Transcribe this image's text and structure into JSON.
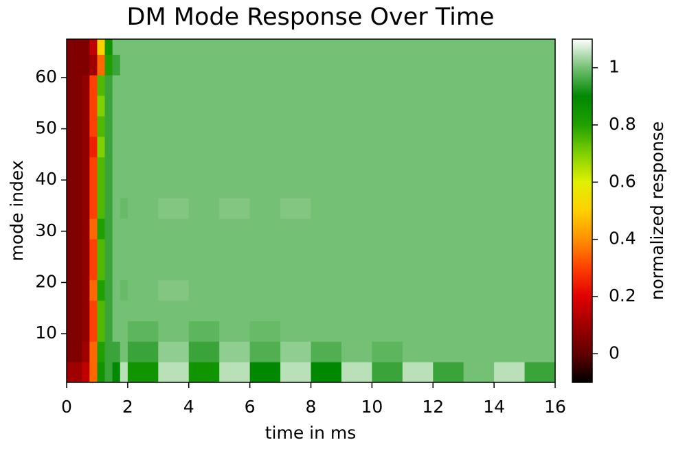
{
  "chart_data": {
    "type": "heatmap",
    "title": "DM Mode Response Over Time",
    "xlabel": "time in ms",
    "ylabel": "mode index",
    "colorbar_label": "normalized response",
    "xlim": [
      0,
      16
    ],
    "ylim": [
      0.5,
      67.5
    ],
    "xticks": [
      0,
      2,
      4,
      6,
      8,
      10,
      12,
      14,
      16
    ],
    "yticks": [
      10,
      20,
      30,
      40,
      50,
      60
    ],
    "clim": [
      -0.1,
      1.1
    ],
    "cticks": [
      0,
      0.2,
      0.4,
      0.6,
      0.8,
      1
    ],
    "colormap": [
      "#000000",
      "#600000",
      "#a00000",
      "#e00000",
      "#ff4000",
      "#ff9000",
      "#ffd000",
      "#e0f000",
      "#80d000",
      "#20a000",
      "#008800",
      "#74c074",
      "#ffffff"
    ],
    "x_edges": [
      0,
      0.25,
      0.5,
      0.75,
      1,
      1.25,
      1.5,
      1.75,
      2,
      3,
      4,
      5,
      6,
      7,
      8,
      9,
      10,
      11,
      12,
      13,
      14,
      15,
      16
    ],
    "y_edges": [
      0.5,
      4.5,
      8.5,
      12.5,
      16.5,
      20.5,
      24.5,
      28.5,
      32.5,
      36.5,
      40.5,
      44.5,
      48.5,
      52.5,
      56.5,
      60.5,
      64.5,
      67.5
    ],
    "z": [
      [
        0.1,
        0.1,
        0.15,
        0.35,
        0.85,
        0.95,
        0.9,
        1.05,
        0.85,
        1.05,
        0.85,
        1.05,
        0.9,
        1.05,
        0.9,
        1.05,
        0.95,
        1.05,
        0.95,
        1.0,
        1.05,
        0.95
      ],
      [
        0.05,
        0.05,
        0.1,
        0.35,
        0.8,
        0.95,
        0.95,
        1.0,
        0.95,
        1.02,
        0.95,
        1.02,
        0.97,
        1.02,
        0.97,
        1.0,
        0.98,
        1.0,
        1.0,
        1.0,
        1.0,
        1.0
      ],
      [
        0.05,
        0.05,
        0.08,
        0.3,
        0.75,
        0.95,
        1,
        1,
        0.98,
        1,
        0.98,
        1,
        0.99,
        1,
        1,
        1,
        1,
        1,
        1,
        1,
        1,
        1
      ],
      [
        0.05,
        0.05,
        0.08,
        0.3,
        0.75,
        0.95,
        1,
        1,
        1,
        1,
        1,
        1,
        1,
        1,
        1,
        1,
        1,
        1,
        1,
        1,
        1,
        1
      ],
      [
        0.05,
        0.05,
        0.08,
        0.35,
        0.8,
        0.95,
        1,
        0.99,
        1,
        1.01,
        1,
        1,
        1,
        1,
        1,
        1,
        1,
        1,
        1,
        1,
        1,
        1
      ],
      [
        0.05,
        0.05,
        0.08,
        0.3,
        0.75,
        0.95,
        1,
        1,
        1,
        1,
        1,
        1,
        1,
        1,
        1,
        1,
        1,
        1,
        1,
        1,
        1,
        1
      ],
      [
        0.05,
        0.05,
        0.08,
        0.3,
        0.75,
        0.95,
        1,
        1,
        1,
        1,
        1,
        1,
        1,
        1,
        1,
        1,
        1,
        1,
        1,
        1,
        1,
        1
      ],
      [
        0.05,
        0.05,
        0.08,
        0.35,
        0.8,
        0.95,
        1,
        1,
        1,
        1,
        1,
        1,
        1,
        1,
        1,
        1,
        1,
        1,
        1,
        1,
        1,
        1
      ],
      [
        0.05,
        0.05,
        0.08,
        0.3,
        0.75,
        0.95,
        1,
        0.99,
        1,
        1.01,
        1,
        1.01,
        1,
        1.01,
        1,
        1,
        1,
        1,
        1,
        1,
        1,
        1
      ],
      [
        0.05,
        0.05,
        0.08,
        0.3,
        0.75,
        0.95,
        1,
        1,
        1,
        1,
        1,
        1,
        1,
        1,
        1,
        1,
        1,
        1,
        1,
        1,
        1,
        1
      ],
      [
        0.05,
        0.05,
        0.08,
        0.3,
        0.75,
        0.95,
        1,
        1,
        1,
        1,
        1,
        1,
        1,
        1,
        1,
        1,
        1,
        1,
        1,
        1,
        1,
        1
      ],
      [
        0.05,
        0.05,
        0.08,
        0.25,
        0.7,
        0.95,
        1,
        1,
        1,
        1,
        1,
        1,
        1,
        1,
        1,
        1,
        1,
        1,
        1,
        1,
        1,
        1
      ],
      [
        0.05,
        0.05,
        0.08,
        0.3,
        0.75,
        0.95,
        1,
        1,
        1,
        1,
        1,
        1,
        1,
        1,
        1,
        1,
        1,
        1,
        1,
        1,
        1,
        1
      ],
      [
        0.05,
        0.05,
        0.08,
        0.3,
        0.7,
        0.95,
        1,
        1,
        1,
        1,
        1,
        1,
        1,
        1,
        1,
        1,
        1,
        1,
        1,
        1,
        1,
        1
      ],
      [
        0.05,
        0.05,
        0.08,
        0.3,
        0.75,
        0.95,
        1,
        1,
        1,
        1,
        1,
        1,
        1,
        1,
        1,
        1,
        1,
        1,
        1,
        1,
        1,
        1
      ],
      [
        0.05,
        0.05,
        0.05,
        0.1,
        0.35,
        0.8,
        0.95,
        1,
        1,
        1,
        1,
        1,
        1,
        1,
        1,
        1,
        1,
        1,
        1,
        1,
        1,
        1
      ],
      [
        0.05,
        0.05,
        0.05,
        0.15,
        0.5,
        0.85,
        1,
        1,
        1,
        1,
        1,
        1,
        1,
        1,
        1,
        1,
        1,
        1,
        1,
        1,
        1,
        1
      ]
    ]
  }
}
